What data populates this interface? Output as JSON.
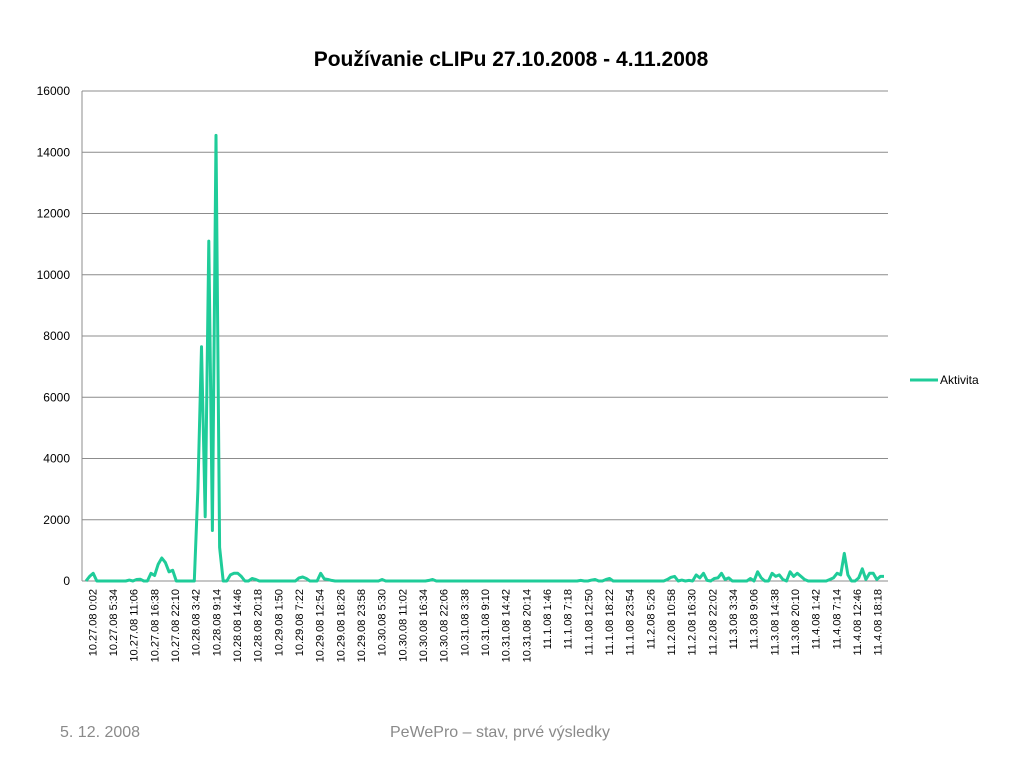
{
  "footer": {
    "date": "5. 12. 2008",
    "center": "PeWePro – stav, prvé výsledky"
  },
  "colors": {
    "series": "#1fcc99",
    "grid": "#8c8c8c",
    "axis": "#8c8c8c"
  },
  "chart_data": {
    "type": "line",
    "title": "Používanie cLIPu 27.10.2008 - 4.11.2008",
    "xlabel": "",
    "ylabel": "",
    "ylim": [
      0,
      16000
    ],
    "yticks": [
      0,
      2000,
      4000,
      6000,
      8000,
      10000,
      12000,
      14000,
      16000
    ],
    "grid": true,
    "legend_position": "right",
    "x_tick_labels": [
      "10.27.08 0:02",
      "10.27.08 5:34",
      "10.27.08 11:06",
      "10.27.08 16:38",
      "10.27.08 22:10",
      "10.28.08 3:42",
      "10.28.08 9:14",
      "10.28.08 14:46",
      "10.28.08 20:18",
      "10.29.08 1:50",
      "10.29.08 7:22",
      "10.29.08 12:54",
      "10.29.08 18:26",
      "10.29.08 23:58",
      "10.30.08 5:30",
      "10.30.08 11:02",
      "10.30.08 16:34",
      "10.30.08 22:06",
      "10.31.08 3:38",
      "10.31.08 9:10",
      "10.31.08 14:42",
      "10.31.08 20:14",
      "11.1.08 1:46",
      "11.1.08 7:18",
      "11.1.08 12:50",
      "11.1.08 18:22",
      "11.1.08 23:54",
      "11.2.08 5:26",
      "11.2.08 10:58",
      "11.2.08 16:30",
      "11.2.08 22:02",
      "11.3.08 3:34",
      "11.3.08 9:06",
      "11.3.08 14:38",
      "11.3.08 20:10",
      "11.4.08 1:42",
      "11.4.08 7:14",
      "11.4.08 12:46",
      "11.4.08 18:18"
    ],
    "series": [
      {
        "name": "Aktivita",
        "values": [
          0,
          150,
          250,
          0,
          0,
          0,
          0,
          0,
          0,
          0,
          0,
          0,
          30,
          0,
          50,
          60,
          0,
          0,
          250,
          180,
          550,
          750,
          600,
          300,
          350,
          0,
          0,
          0,
          0,
          0,
          0,
          3000,
          7650,
          2100,
          11100,
          1650,
          14550,
          1100,
          0,
          0,
          200,
          250,
          250,
          150,
          0,
          0,
          80,
          50,
          0,
          0,
          0,
          0,
          0,
          0,
          0,
          0,
          0,
          0,
          0,
          100,
          130,
          80,
          0,
          0,
          0,
          250,
          70,
          50,
          20,
          0,
          0,
          0,
          0,
          0,
          0,
          0,
          0,
          0,
          0,
          0,
          0,
          0,
          50,
          0,
          0,
          0,
          0,
          0,
          0,
          0,
          0,
          0,
          0,
          0,
          0,
          20,
          50,
          0,
          0,
          0,
          0,
          0,
          0,
          0,
          0,
          0,
          0,
          0,
          0,
          0,
          0,
          0,
          0,
          0,
          0,
          0,
          0,
          0,
          0,
          0,
          0,
          0,
          0,
          0,
          0,
          0,
          0,
          0,
          0,
          0,
          0,
          0,
          0,
          0,
          0,
          0,
          0,
          20,
          0,
          0,
          30,
          50,
          0,
          0,
          50,
          80,
          0,
          0,
          0,
          0,
          0,
          0,
          0,
          0,
          0,
          0,
          0,
          0,
          0,
          0,
          0,
          50,
          120,
          150,
          0,
          30,
          0,
          20,
          0,
          200,
          100,
          250,
          20,
          0,
          80,
          100,
          250,
          50,
          100,
          0,
          0,
          0,
          0,
          0,
          80,
          0,
          300,
          100,
          0,
          0,
          250,
          150,
          200,
          50,
          0,
          300,
          150,
          250,
          150,
          50,
          0,
          0,
          0,
          0,
          0,
          0,
          50,
          100,
          250,
          200,
          900,
          200,
          0,
          0,
          100,
          400,
          50,
          250,
          250,
          50,
          150,
          150
        ]
      }
    ]
  }
}
